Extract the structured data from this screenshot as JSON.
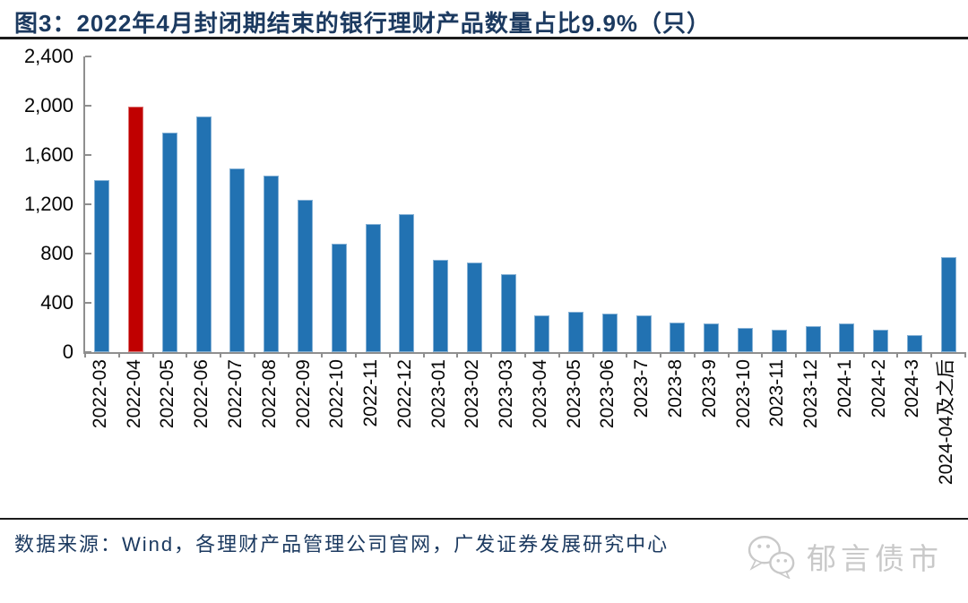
{
  "header": {
    "title": "图3：2022年4月封闭期结束的银行理财产品数量占比9.9%（只）"
  },
  "chart_data": {
    "type": "bar",
    "categories": [
      "2022-03",
      "2022-04",
      "2022-05",
      "2022-06",
      "2022-07",
      "2022-08",
      "2022-09",
      "2022-10",
      "2022-11",
      "2022-12",
      "2023-01",
      "2023-02",
      "2023-03",
      "2023-04",
      "2023-05",
      "2023-06",
      "2023-7",
      "2023-8",
      "2023-9",
      "2023-10",
      "2023-11",
      "2023-12",
      "2024-1",
      "2024-2",
      "2024-3",
      "2024-04及之后"
    ],
    "values": [
      1400,
      1990,
      1780,
      1910,
      1490,
      1430,
      1240,
      880,
      1040,
      1120,
      750,
      730,
      630,
      300,
      330,
      310,
      300,
      240,
      230,
      200,
      185,
      210,
      230,
      180,
      140,
      770
    ],
    "highlight_index": 1,
    "title": "图3：2022年4月封闭期结束的银行理财产品数量占比9.9%（只）",
    "xlabel": "",
    "ylabel": "",
    "ylim": [
      0,
      2400
    ],
    "yticks": [
      0,
      400,
      800,
      1200,
      1600,
      2000,
      2400
    ],
    "ytick_labels": [
      "0",
      "400",
      "800",
      "1,200",
      "1,600",
      "2,000",
      "2,400"
    ],
    "grid": false,
    "legend_position": "none",
    "colors": {
      "bar": "#2272B2",
      "highlight": "#C00000",
      "axis": "#8f8f8f",
      "tick_label": "#060606",
      "title_text": "#1c3a60"
    }
  },
  "footer": {
    "source": "数据来源：Wind，各理财产品管理公司官网，广发证券发展研究中心",
    "watermark_icon": "wechat-icon",
    "watermark_text": "郁言债市"
  }
}
